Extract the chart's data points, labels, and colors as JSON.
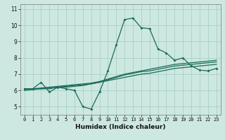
{
  "xlabel": "Humidex (Indice chaleur)",
  "bg_color": "#cde8e0",
  "grid_color": "#aacfc7",
  "line_color": "#1a6b5a",
  "xlim": [
    -0.5,
    23.5
  ],
  "ylim": [
    4.5,
    11.3
  ],
  "xticks": [
    0,
    1,
    2,
    3,
    4,
    5,
    6,
    7,
    8,
    9,
    10,
    11,
    12,
    13,
    14,
    15,
    16,
    17,
    18,
    19,
    20,
    21,
    22,
    23
  ],
  "yticks": [
    5,
    6,
    7,
    8,
    9,
    10,
    11
  ],
  "line1_x": [
    0,
    1,
    2,
    3,
    4,
    5,
    6,
    7,
    8,
    9,
    10,
    11,
    12,
    13,
    14,
    15,
    16,
    17,
    18,
    19,
    20,
    21,
    22,
    23
  ],
  "line1_y": [
    6.1,
    6.1,
    6.5,
    5.9,
    6.2,
    6.1,
    6.0,
    5.0,
    4.85,
    5.9,
    7.2,
    8.8,
    10.35,
    10.45,
    9.85,
    9.8,
    8.55,
    8.3,
    7.85,
    8.0,
    7.5,
    7.25,
    7.2,
    7.35
  ],
  "line2_x": [
    0,
    1,
    2,
    3,
    4,
    5,
    6,
    7,
    8,
    9,
    10,
    11,
    12,
    13,
    14,
    15,
    16,
    17,
    18,
    19,
    20,
    21,
    22,
    23
  ],
  "line2_y": [
    6.1,
    6.1,
    6.1,
    6.1,
    6.2,
    6.2,
    6.25,
    6.3,
    6.4,
    6.5,
    6.65,
    6.8,
    6.95,
    7.05,
    7.15,
    7.2,
    7.3,
    7.4,
    7.5,
    7.55,
    7.6,
    7.65,
    7.7,
    7.75
  ],
  "line3_x": [
    0,
    1,
    2,
    3,
    4,
    5,
    6,
    7,
    8,
    9,
    10,
    11,
    12,
    13,
    14,
    15,
    16,
    17,
    18,
    19,
    20,
    21,
    22,
    23
  ],
  "line3_y": [
    6.1,
    6.1,
    6.15,
    6.2,
    6.25,
    6.3,
    6.35,
    6.4,
    6.45,
    6.55,
    6.7,
    6.85,
    7.0,
    7.1,
    7.2,
    7.3,
    7.4,
    7.5,
    7.6,
    7.65,
    7.7,
    7.75,
    7.8,
    7.85
  ],
  "line4_x": [
    0,
    1,
    2,
    3,
    4,
    5,
    6,
    7,
    8,
    9,
    10,
    11,
    12,
    13,
    14,
    15,
    16,
    17,
    18,
    19,
    20,
    21,
    22,
    23
  ],
  "line4_y": [
    6.0,
    6.05,
    6.1,
    6.15,
    6.2,
    6.25,
    6.3,
    6.35,
    6.4,
    6.5,
    6.6,
    6.7,
    6.8,
    6.9,
    7.0,
    7.05,
    7.15,
    7.25,
    7.35,
    7.4,
    7.45,
    7.5,
    7.55,
    7.6
  ],
  "xlabel_fontsize": 6.5,
  "tick_fontsize": 5.0,
  "line_width": 0.9,
  "marker_size": 2.0
}
